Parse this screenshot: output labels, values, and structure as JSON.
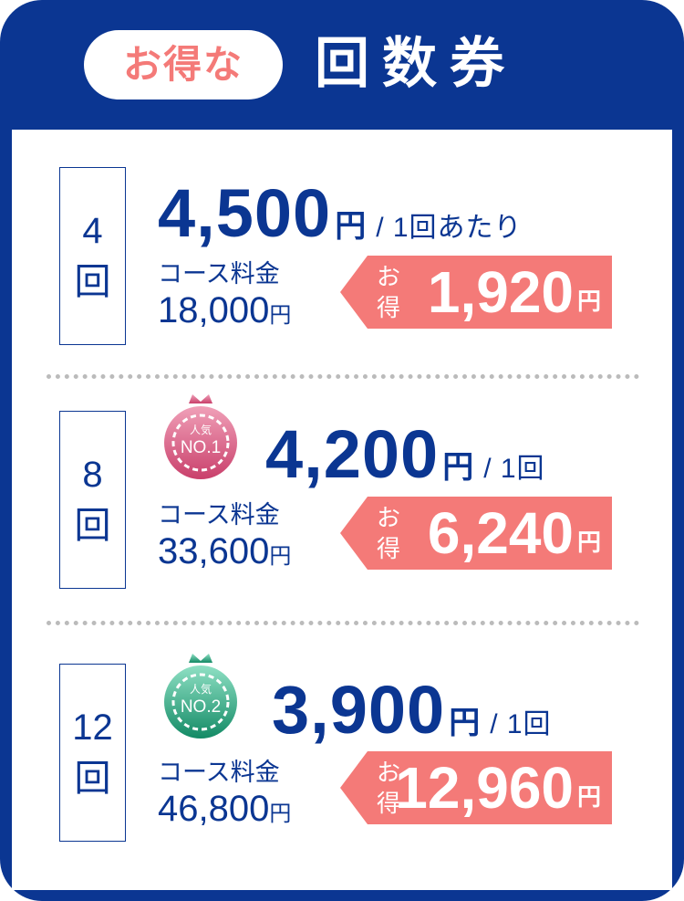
{
  "header": {
    "badge": "お得な",
    "title": "回数券"
  },
  "colors": {
    "navy": "#0b3692",
    "salmon": "#f47a78",
    "rank1": "#d9577f",
    "rank2": "#1f9a75"
  },
  "plans": [
    {
      "count": "4",
      "unit": "回",
      "price": "4,500",
      "yen": "円",
      "per": "/ 1回あたり",
      "course_label": "コース料金",
      "course_total": "18,000",
      "course_yen": "円",
      "save_label": "お得",
      "save": "1,920",
      "save_yen": "円"
    },
    {
      "count": "8",
      "unit": "回",
      "rank_top": "人気",
      "rank": "NO.1",
      "price": "4,200",
      "yen": "円",
      "per": "/ 1回",
      "course_label": "コース料金",
      "course_total": "33,600",
      "course_yen": "円",
      "save_label": "お得",
      "save": "6,240",
      "save_yen": "円"
    },
    {
      "count": "12",
      "unit": "回",
      "rank_top": "人気",
      "rank": "NO.2",
      "price": "3,900",
      "yen": "円",
      "per": "/ 1回",
      "course_label": "コース料金",
      "course_total": "46,800",
      "course_yen": "円",
      "save_label": "お得",
      "save": "12,960",
      "save_yen": "円"
    }
  ]
}
